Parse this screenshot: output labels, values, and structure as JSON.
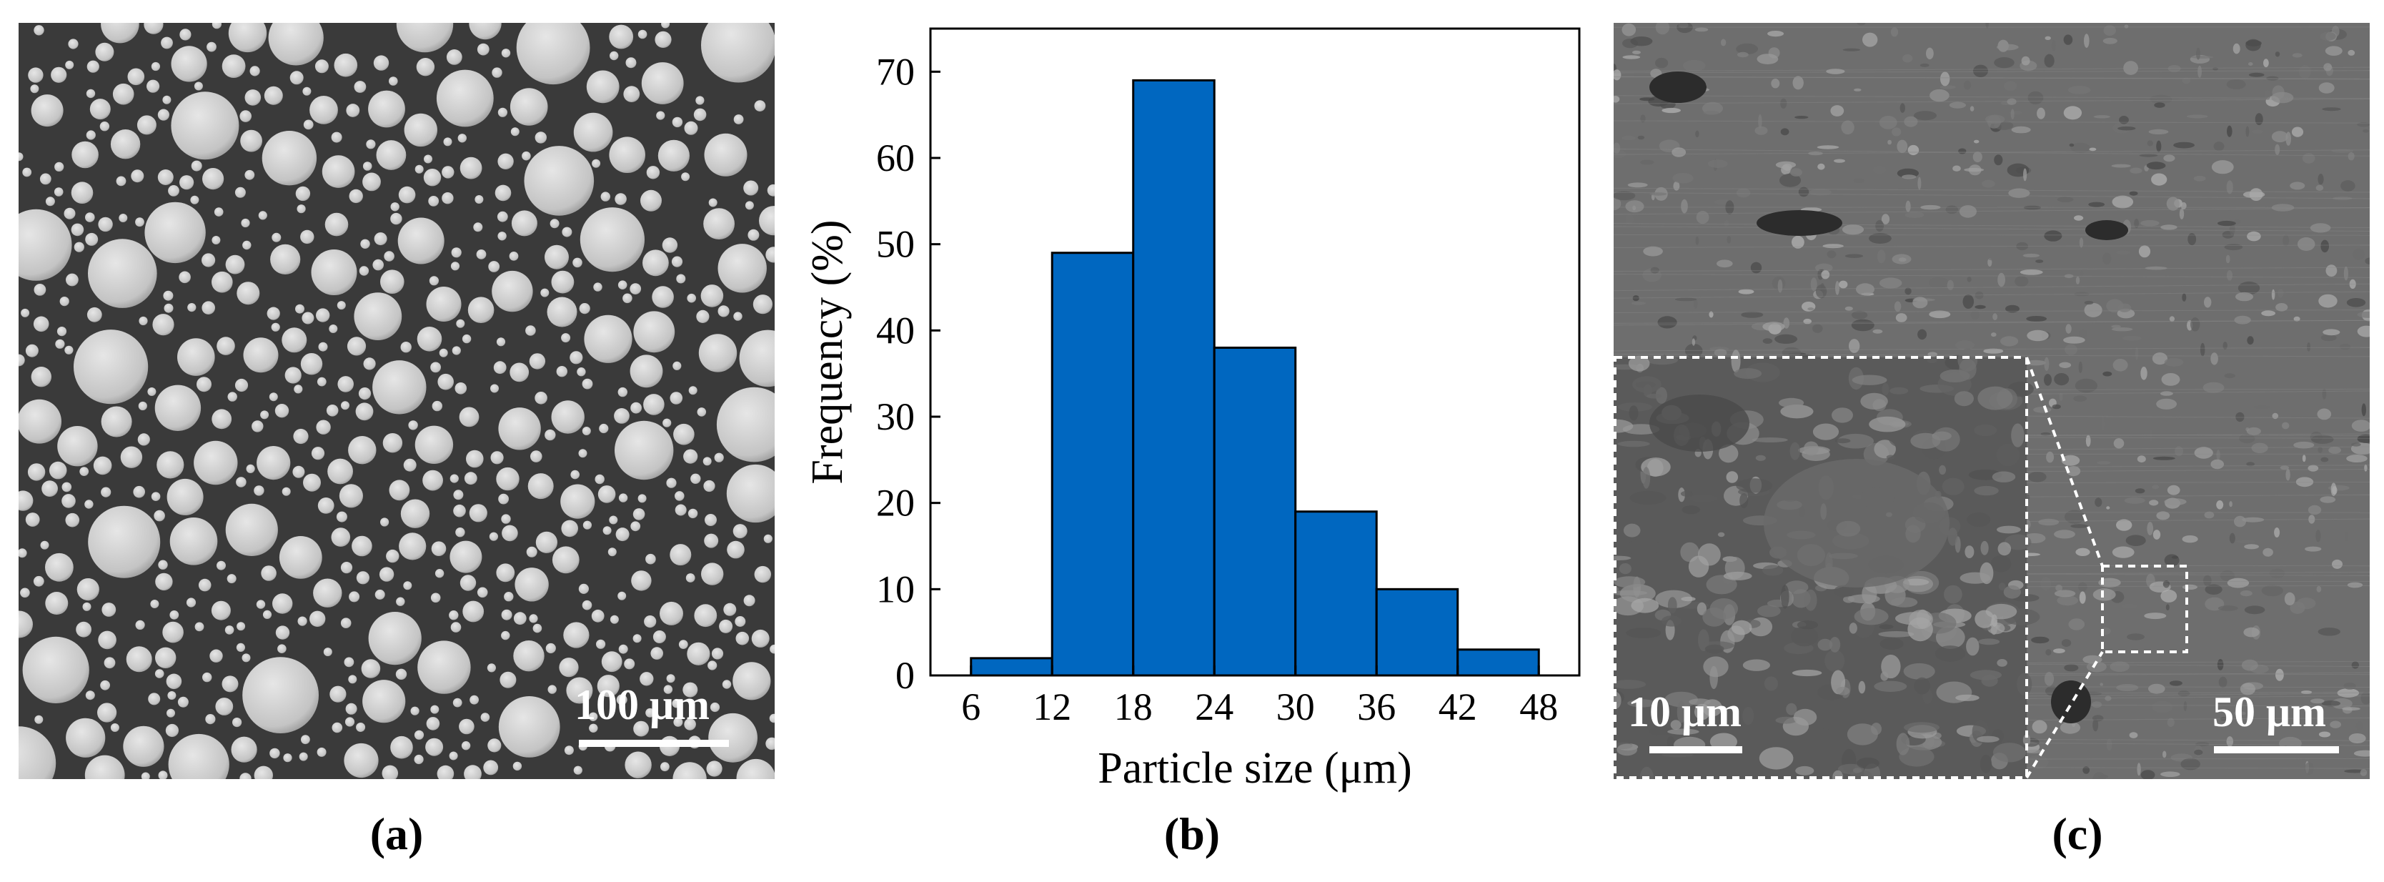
{
  "figure": {
    "panel_labels": [
      "(a)",
      "(b)",
      "(c)"
    ],
    "panel_a": {
      "scale_label": "100 μm"
    },
    "panel_c": {
      "scale_label_main": "50 μm",
      "scale_label_inset": "10 μm"
    }
  },
  "colors": {
    "bar_fill": "#0067C0",
    "bar_stroke": "#000000",
    "sem_background": "#3a3a3a",
    "particle": "#cfcfcf"
  },
  "chart_data": {
    "type": "bar",
    "title": "",
    "xlabel": "Particle size (μm)",
    "ylabel": "Frequency (%)",
    "bin_edges": [
      6,
      12,
      18,
      24,
      30,
      36,
      42,
      48
    ],
    "values": [
      2,
      49,
      69,
      38,
      19,
      10,
      3
    ],
    "xticks": [
      6,
      12,
      18,
      24,
      30,
      36,
      42,
      48
    ],
    "yticks": [
      0,
      10,
      20,
      30,
      40,
      50,
      60,
      70
    ],
    "xlim": [
      3,
      51
    ],
    "ylim": [
      0,
      75
    ]
  }
}
